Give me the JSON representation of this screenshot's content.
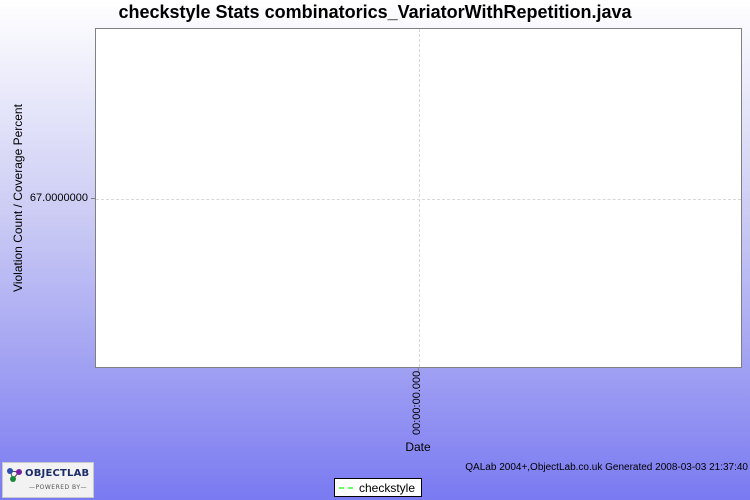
{
  "chart_data": {
    "type": "line",
    "title": "checkstyle  Stats combinatorics_VariatorWithRepetition.java",
    "xlabel": "Date",
    "ylabel": "Violation Count / Coverage Percent",
    "x_ticks": [
      "00:00:00.000"
    ],
    "y_ticks": [
      "67.0000000"
    ],
    "ylim": [
      66,
      68
    ],
    "grid": true,
    "legend_position": "bottom",
    "series": [
      {
        "name": "checkstyle",
        "color": "#66ff66",
        "style": "dashed",
        "x": [],
        "values": []
      }
    ]
  },
  "footer": {
    "credit": "QALab 2004+,ObjectLab.co.uk  Generated 2008-03-03 21:37:40"
  },
  "logo": {
    "name": "OBJECTLAB",
    "tagline": "—POWERED BY—"
  }
}
